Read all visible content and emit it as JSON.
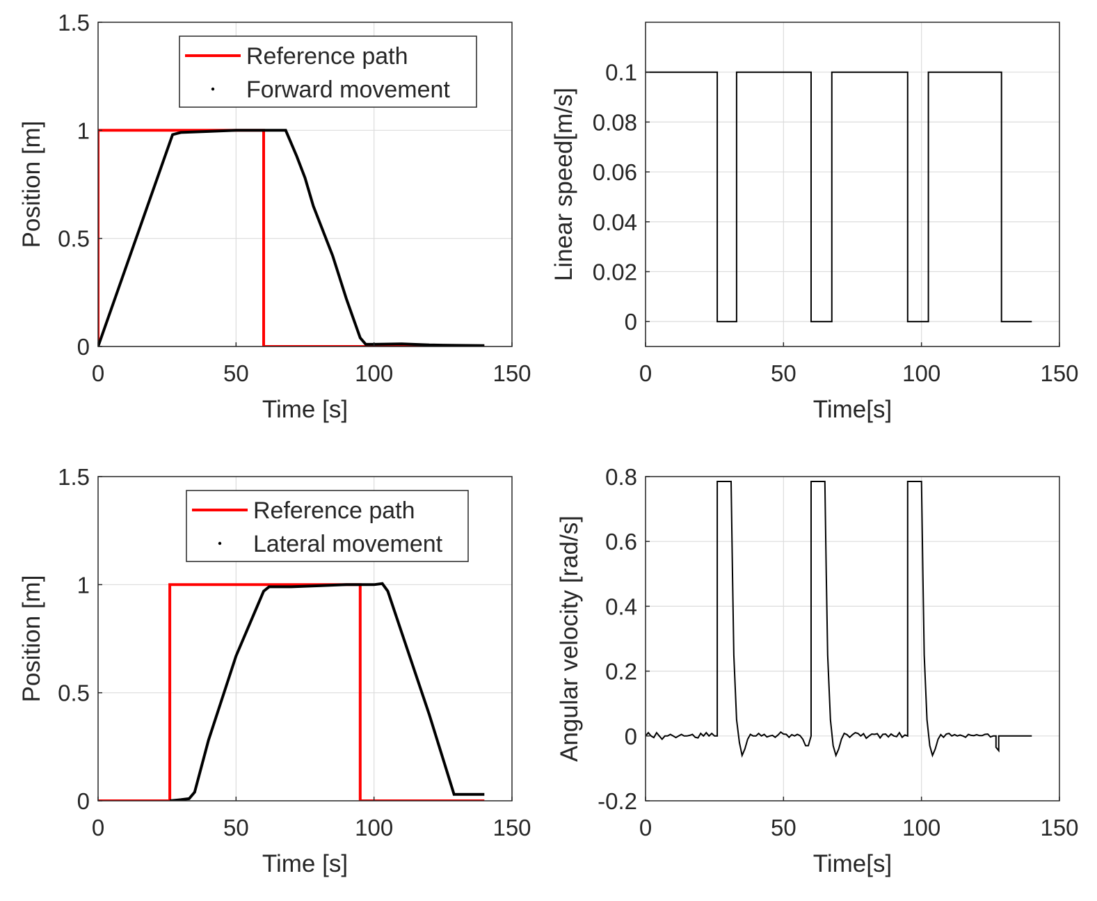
{
  "chart_data": [
    {
      "type": "line",
      "id": "forward-position",
      "xlabel": "Time [s]",
      "ylabel": "Position [m]",
      "xlim": [
        0,
        150
      ],
      "ylim": [
        0,
        1.5
      ],
      "xticks": [
        0,
        50,
        100,
        150
      ],
      "yticks": [
        0,
        0.5,
        1,
        1.5
      ],
      "xtick_labels": [
        "0",
        "50",
        "100",
        "150"
      ],
      "ytick_labels": [
        "0",
        "0.5",
        "1",
        "1.5"
      ],
      "grid": true,
      "legend": "top-right",
      "series": [
        {
          "name": "Reference path",
          "style": "line",
          "color": "#ff0000",
          "x": [
            0,
            0,
            60,
            60,
            140
          ],
          "y": [
            0,
            1,
            1,
            0,
            0
          ]
        },
        {
          "name": "Forward movement",
          "style": "dots",
          "color": "#000000",
          "x": [
            0,
            27,
            30,
            40,
            50,
            60,
            65,
            68,
            72,
            75,
            78,
            85,
            90,
            95,
            97,
            100,
            110,
            120,
            130,
            140
          ],
          "y": [
            0,
            0.98,
            0.99,
            0.995,
            1.0,
            1.0,
            1.0,
            1.0,
            0.88,
            0.78,
            0.65,
            0.42,
            0.22,
            0.04,
            0.01,
            0.01,
            0.012,
            0.007,
            0.005,
            0.004
          ]
        }
      ]
    },
    {
      "type": "line",
      "id": "linear-speed",
      "xlabel": "Time[s]",
      "ylabel": "Linear speed[m/s]",
      "xlim": [
        0,
        150
      ],
      "ylim": [
        -0.01,
        0.12
      ],
      "xticks": [
        0,
        50,
        100,
        150
      ],
      "yticks": [
        0,
        0.02,
        0.04,
        0.06,
        0.08,
        0.1
      ],
      "xtick_labels": [
        "0",
        "50",
        "100",
        "150"
      ],
      "ytick_labels": [
        "0",
        "0.02",
        "0.04",
        "0.06",
        "0.08",
        "0.1"
      ],
      "grid": true,
      "series": [
        {
          "name": "Linear speed",
          "style": "line",
          "color": "#000000",
          "x": [
            0,
            26,
            26,
            33,
            33,
            60,
            60,
            67.5,
            67.5,
            95,
            95,
            102.5,
            102.5,
            129,
            129,
            140
          ],
          "y": [
            0.1,
            0.1,
            0,
            0,
            0.1,
            0.1,
            0,
            0,
            0.1,
            0.1,
            0,
            0,
            0.1,
            0.1,
            0,
            0
          ]
        }
      ]
    },
    {
      "type": "line",
      "id": "lateral-position",
      "xlabel": "Time [s]",
      "ylabel": "Position [m]",
      "xlim": [
        0,
        150
      ],
      "ylim": [
        0,
        1.5
      ],
      "xticks": [
        0,
        50,
        100,
        150
      ],
      "yticks": [
        0,
        0.5,
        1,
        1.5
      ],
      "xtick_labels": [
        "0",
        "50",
        "100",
        "150"
      ],
      "ytick_labels": [
        "0",
        "0.5",
        "1",
        "1.5"
      ],
      "grid": true,
      "legend": "top-right",
      "series": [
        {
          "name": "Reference path",
          "style": "line",
          "color": "#ff0000",
          "x": [
            0,
            26,
            26,
            95,
            95,
            140
          ],
          "y": [
            0,
            0,
            1,
            1,
            0,
            0
          ]
        },
        {
          "name": "Lateral movement",
          "style": "dots",
          "color": "#000000",
          "x": [
            26,
            30,
            33,
            35,
            40,
            50,
            60,
            62,
            70,
            80,
            90,
            100,
            103,
            105,
            110,
            120,
            129,
            130,
            135,
            140
          ],
          "y": [
            0,
            0.005,
            0.01,
            0.04,
            0.28,
            0.67,
            0.97,
            0.99,
            0.99,
            0.995,
            1.0,
            1.0,
            1.005,
            0.97,
            0.78,
            0.4,
            0.03,
            0.03,
            0.03,
            0.03
          ]
        }
      ]
    },
    {
      "type": "line",
      "id": "angular-velocity",
      "xlabel": "Time[s]",
      "ylabel": "Angular velocity [rad/s]",
      "xlim": [
        0,
        150
      ],
      "ylim": [
        -0.2,
        0.8
      ],
      "xticks": [
        0,
        50,
        100,
        150
      ],
      "yticks": [
        -0.2,
        0,
        0.2,
        0.4,
        0.6,
        0.8
      ],
      "xtick_labels": [
        "0",
        "50",
        "100",
        "150"
      ],
      "ytick_labels": [
        "-0.2",
        "0",
        "0.2",
        "0.4",
        "0.6",
        "0.8"
      ],
      "grid": true,
      "series": [
        {
          "name": "Angular velocity",
          "style": "line",
          "color": "#000000",
          "x": [
            0,
            1,
            2,
            3,
            4,
            5,
            6,
            7,
            8,
            9,
            10,
            11,
            12,
            13,
            14,
            15,
            16,
            17,
            18,
            19,
            20,
            21,
            22,
            23,
            24,
            25,
            26,
            26,
            31,
            31.5,
            32,
            33,
            34,
            35,
            36,
            37,
            38,
            39,
            40,
            41,
            42,
            43,
            44,
            45,
            46,
            47,
            48,
            49,
            50,
            51,
            52,
            53,
            54,
            55,
            56,
            57,
            58,
            59,
            60,
            60,
            65,
            65.5,
            66,
            67,
            68,
            69,
            70,
            71,
            72,
            73,
            74,
            75,
            76,
            77,
            78,
            79,
            80,
            81,
            82,
            83,
            84,
            85,
            86,
            87,
            88,
            89,
            90,
            91,
            92,
            93,
            94,
            95,
            95,
            100,
            100.5,
            101,
            102,
            103,
            104,
            105,
            106,
            107,
            108,
            109,
            110,
            111,
            112,
            113,
            114,
            115,
            116,
            117,
            118,
            119,
            120,
            121,
            122,
            123,
            124,
            125,
            126,
            127,
            127,
            128,
            128,
            140
          ],
          "y": [
            0.0,
            0.01,
            0.0,
            -0.005,
            0.01,
            0.0,
            -0.01,
            0.0,
            0.0,
            0.005,
            0.0,
            -0.005,
            0.0,
            0.005,
            0.0,
            0.0,
            0.002,
            0.005,
            -0.004,
            -0.006,
            0.008,
            0.0,
            0.01,
            0.0,
            0.008,
            0.0,
            0.0,
            0.785,
            0.785,
            0.5,
            0.25,
            0.05,
            -0.02,
            -0.06,
            -0.04,
            -0.01,
            0.005,
            0.0,
            0.0,
            0.008,
            0.0,
            0.005,
            -0.003,
            0.0,
            0.002,
            -0.004,
            0.003,
            0.012,
            0.006,
            0.005,
            -0.004,
            0.004,
            0.0,
            0.005,
            0.001,
            -0.01,
            -0.03,
            -0.03,
            0.0,
            0.785,
            0.785,
            0.5,
            0.25,
            0.05,
            -0.03,
            -0.06,
            -0.04,
            -0.01,
            0.008,
            0.004,
            -0.004,
            0.004,
            0.01,
            0.008,
            0.0,
            0.007,
            -0.007,
            0.0,
            0.006,
            0.005,
            0.007,
            -0.006,
            0.005,
            0.006,
            -0.003,
            0.006,
            0.0,
            -0.002,
            0.01,
            -0.004,
            0.003,
            0.0,
            0.785,
            0.785,
            0.5,
            0.25,
            0.05,
            -0.03,
            -0.06,
            -0.04,
            -0.01,
            0.004,
            -0.004,
            0.006,
            0.008,
            0.0,
            0.004,
            0.0,
            0.003,
            0.0,
            -0.004,
            0.005,
            0.002,
            0.001,
            0.004,
            0.001,
            0.001,
            0.005,
            0.006,
            -0.003,
            0.0,
            0.0,
            -0.035,
            -0.045,
            0.0,
            0.0
          ]
        }
      ]
    }
  ]
}
